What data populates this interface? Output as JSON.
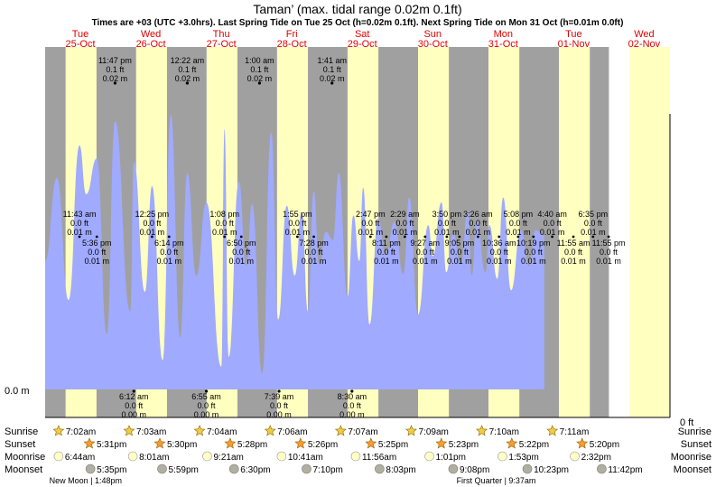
{
  "chart_data": {
    "type": "area",
    "title": "Taman’ (max. tidal range 0.02m 0.1ft)",
    "subtitle": "Times are +03 (UTC +3.0hrs). Last Spring Tide on Tue 25 Oct (h=0.02m 0.1ft). Next Spring Tide on Mon 31 Oct (h=0.01m 0.0ft)",
    "xlabel": "",
    "ylabel": "",
    "y_left_label": "0.0 m",
    "y_right_label": "0 ft",
    "days": [
      {
        "dow": "Tue",
        "date": "25-Oct"
      },
      {
        "dow": "Wed",
        "date": "26-Oct"
      },
      {
        "dow": "Thu",
        "date": "27-Oct"
      },
      {
        "dow": "Fri",
        "date": "28-Oct"
      },
      {
        "dow": "Sat",
        "date": "29-Oct"
      },
      {
        "dow": "Sun",
        "date": "30-Oct"
      },
      {
        "dow": "Mon",
        "date": "31-Oct"
      },
      {
        "dow": "Tue",
        "date": "01-Nov"
      },
      {
        "dow": "Wed",
        "date": "02-Nov"
      }
    ],
    "series": [
      {
        "name": "",
        "x_hours": [
          0,
          4,
          8,
          11.7,
          14,
          17.6,
          21,
          23.8,
          29,
          30.2,
          34,
          36.4,
          40,
          42.8,
          46,
          48.4,
          51.5,
          54.9,
          60,
          61.1,
          62.5,
          66,
          68.5,
          70.5,
          73.9,
          77,
          79.4,
          82.3,
          85,
          87.4,
          89.5,
          91.5,
          93.3,
          95.6,
          98,
          100,
          103,
          105,
          107,
          108.3,
          110.5,
          113.4,
          116,
          119,
          122,
          124,
          127,
          130.5,
          132,
          135,
          136.6,
          139,
          141.5,
          144,
          145.3,
          147,
          150,
          151.3,
          154,
          156,
          158.7,
          162,
          164.8,
          167,
          170
        ],
        "values": [
          0.0079,
          0.013,
          0.0055,
          0.015,
          0.012,
          0.0142,
          0.0034,
          0.0165,
          0.0048,
          0.014,
          0.006,
          0.0125,
          0.0018,
          0.0169,
          0.0032,
          0.0133,
          0.007,
          0.0115,
          0.0014,
          0.016,
          0.002,
          0.0128,
          0.0076,
          0.0114,
          0.001,
          0.0158,
          0.0043,
          0.0113,
          0.007,
          0.0109,
          0.0048,
          0.0122,
          0.0077,
          0.0097,
          0.0092,
          0.0133,
          0.0057,
          0.0107,
          0.0079,
          0.0124,
          0.004,
          0.0105,
          0.0083,
          0.0103,
          0.0071,
          0.0118,
          0.0046,
          0.0101,
          0.0082,
          0.0115,
          0.0072,
          0.0096,
          0.0077,
          0.011,
          0.007,
          0.0104,
          0.0072,
          0.0101,
          0.0068,
          0.0118,
          0.0061,
          0.0098,
          0.0076,
          0.0098,
          0.0095
        ]
      }
    ],
    "ylim": [
      0,
      0.02
    ],
    "high_tides_top": [
      {
        "time": "11:47 pm",
        "ft": "0.1 ft",
        "m": "0.02 m"
      },
      {
        "time": "12:22 am",
        "ft": "0.1 ft",
        "m": "0.02 m"
      },
      {
        "time": "1:00 am",
        "ft": "0.1 ft",
        "m": "0.02 m"
      },
      {
        "time": "1:41 am",
        "ft": "0.1 ft",
        "m": "0.02 m"
      }
    ],
    "low_tides_bottom": [
      {
        "time": "6:12 am",
        "ft": "0.0 ft",
        "m": "0.00 m"
      },
      {
        "time": "6:55 am",
        "ft": "0.0 ft",
        "m": "0.00 m"
      },
      {
        "time": "7:39 am",
        "ft": "0.0 ft",
        "m": "0.00 m"
      },
      {
        "time": "8:30 am",
        "ft": "0.0 ft",
        "m": "0.00 m"
      }
    ],
    "mid_tides": [
      {
        "time": "11:43 am",
        "ft": "0.0 ft",
        "m": "0.01 m",
        "pos": "upper"
      },
      {
        "time": "5:36 pm",
        "ft": "0.0 ft",
        "m": "0.01 m",
        "pos": "lower"
      },
      {
        "time": "12:25 pm",
        "ft": "0.0 ft",
        "m": "0.01 m",
        "pos": "upper"
      },
      {
        "time": "6:14 pm",
        "ft": "0.0 ft",
        "m": "0.01 m",
        "pos": "lower"
      },
      {
        "time": "1:08 pm",
        "ft": "0.0 ft",
        "m": "0.01 m",
        "pos": "upper"
      },
      {
        "time": "6:50 pm",
        "ft": "0.0 ft",
        "m": "0.01 m",
        "pos": "lower"
      },
      {
        "time": "1:55 pm",
        "ft": "0.0 ft",
        "m": "0.01 m",
        "pos": "upper"
      },
      {
        "time": "7:28 pm",
        "ft": "0.0 ft",
        "m": "0.01 m",
        "pos": "lower"
      },
      {
        "time": "2:47 pm",
        "ft": "0.0 ft",
        "m": "0.01 m",
        "pos": "upper"
      },
      {
        "time": "8:11 pm",
        "ft": "0.0 ft",
        "m": "0.01 m",
        "pos": "lower"
      },
      {
        "time": "2:29 am",
        "ft": "0.0 ft",
        "m": "0.01 m",
        "pos": "upper"
      },
      {
        "time": "9:27 am",
        "ft": "0.0 ft",
        "m": "0.01 m",
        "pos": "lower"
      },
      {
        "time": "3:50 pm",
        "ft": "0.0 ft",
        "m": "0.01 m",
        "pos": "upper"
      },
      {
        "time": "9:05 pm",
        "ft": "0.0 ft",
        "m": "0.01 m",
        "pos": "lower"
      },
      {
        "time": "3:26 am",
        "ft": "0.0 ft",
        "m": "0.01 m",
        "pos": "upper"
      },
      {
        "time": "10:36 am",
        "ft": "0.0 ft",
        "m": "0.01 m",
        "pos": "lower"
      },
      {
        "time": "5:08 pm",
        "ft": "0.0 ft",
        "m": "0.01 m",
        "pos": "upper"
      },
      {
        "time": "10:19 pm",
        "ft": "0.0 ft",
        "m": "0.01 m",
        "pos": "lower"
      },
      {
        "time": "4:40 am",
        "ft": "0.0 ft",
        "m": "0.01 m",
        "pos": "upper"
      },
      {
        "time": "11:55 am",
        "ft": "0.0 ft",
        "m": "0.01 m",
        "pos": "lower"
      },
      {
        "time": "6:35 pm",
        "ft": "0.0 ft",
        "m": "0.01 m",
        "pos": "upper"
      },
      {
        "time": "11:55 pm",
        "ft": "0.0 ft",
        "m": "0.01 m",
        "pos": "lower"
      }
    ],
    "sun_moon_row_labels": [
      "Sunrise",
      "Sunset",
      "Moonrise",
      "Moonset"
    ],
    "sunrise": [
      "7:02am",
      "7:03am",
      "7:04am",
      "7:06am",
      "7:07am",
      "7:09am",
      "7:10am",
      "7:11am"
    ],
    "sunset": [
      "5:31pm",
      "5:30pm",
      "5:28pm",
      "5:26pm",
      "5:25pm",
      "5:23pm",
      "5:22pm",
      "5:20pm"
    ],
    "moonrise": [
      "6:44am",
      "8:01am",
      "9:21am",
      "10:41am",
      "11:56am",
      "1:01pm",
      "1:53pm",
      "2:32pm"
    ],
    "moonset": [
      "5:35pm",
      "5:59pm",
      "6:30pm",
      "7:10pm",
      "8:03pm",
      "9:08pm",
      "10:23pm",
      "11:42pm"
    ],
    "moon_phases": [
      "New Moon | 1:48pm",
      "First Quarter | 9:37am"
    ],
    "colors": {
      "water": "#a0aaff",
      "day": "#ffffc0",
      "night": "#a0a0a0",
      "date_text": "#e00000",
      "sun_icon": "#ff9933",
      "moon_icon": "#d0d0a8"
    },
    "legend": "none",
    "grid": false
  }
}
